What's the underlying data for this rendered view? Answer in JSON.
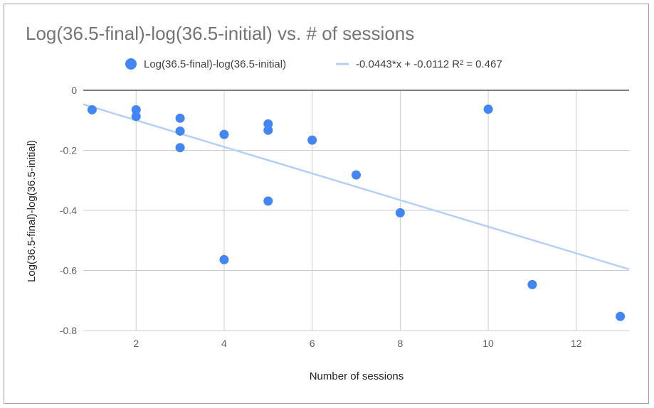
{
  "chart_data": {
    "type": "scatter",
    "title": "Log(36.5-final)-log(36.5-initial) vs. # of sessions",
    "xlabel": "Number of sessions",
    "ylabel": "Log(36.5-final)-log(36.5-initial)",
    "xlim": [
      0.8,
      13.2
    ],
    "ylim": [
      -0.8,
      0
    ],
    "x_ticks": [
      2,
      4,
      6,
      8,
      10,
      12
    ],
    "y_ticks": [
      0,
      -0.2,
      -0.4,
      -0.6,
      -0.8
    ],
    "x_tick_labels": [
      "2",
      "4",
      "6",
      "8",
      "10",
      "12"
    ],
    "y_tick_labels": [
      "0",
      "-0.2",
      "-0.4",
      "-0.6",
      "-0.8"
    ],
    "grid": true,
    "legend_position": "top",
    "series": [
      {
        "name": "Log(36.5-final)-log(36.5-initial)",
        "color": "#4285f4",
        "points": [
          [
            1,
            -0.065
          ],
          [
            2,
            -0.065
          ],
          [
            2,
            -0.087
          ],
          [
            3,
            -0.093
          ],
          [
            3,
            -0.136
          ],
          [
            3,
            -0.191
          ],
          [
            4,
            -0.147
          ],
          [
            4,
            -0.564
          ],
          [
            5,
            -0.112
          ],
          [
            5,
            -0.133
          ],
          [
            5,
            -0.369
          ],
          [
            6,
            -0.166
          ],
          [
            7,
            -0.282
          ],
          [
            8,
            -0.408
          ],
          [
            10,
            -0.063
          ],
          [
            11,
            -0.647
          ],
          [
            13,
            -0.753
          ]
        ]
      }
    ],
    "trendline": {
      "label": "-0.0443*x + -0.0112 R² = 0.467",
      "slope": -0.0443,
      "intercept": -0.0112,
      "r2": 0.467,
      "color": "#b7cff7"
    }
  }
}
